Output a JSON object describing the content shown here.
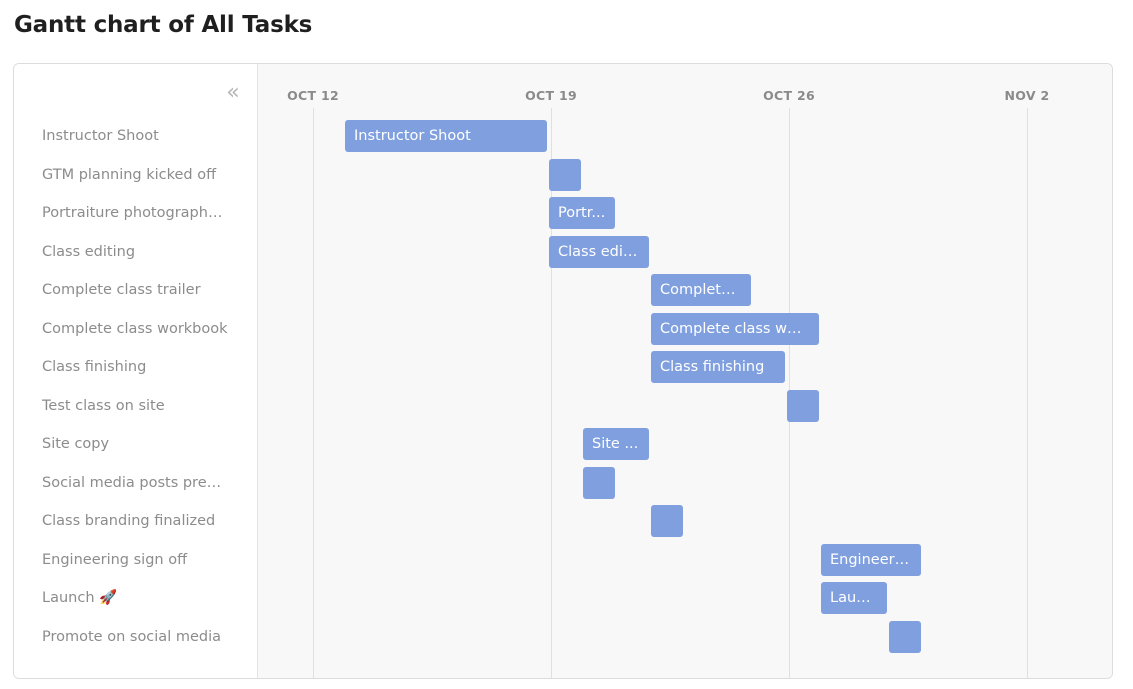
{
  "page": {
    "title": "Gantt chart of All Tasks",
    "collapse_icon": "«"
  },
  "colors": {
    "bar": "#7f9fdf",
    "bar_text": "#ffffff",
    "task_label": "#8c8c8c",
    "date_label": "#8a8a8a",
    "timeline_bg": "#f8f8f8"
  },
  "chart_data": {
    "type": "gantt",
    "title": "Gantt chart of All Tasks",
    "date_ticks": [
      {
        "label": "OCT 12",
        "date": "2020-10-12"
      },
      {
        "label": "OCT 19",
        "date": "2020-10-19"
      },
      {
        "label": "OCT 26",
        "date": "2020-10-26"
      },
      {
        "label": "NOV 2",
        "date": "2020-11-02"
      }
    ],
    "x_range": [
      "2020-10-10",
      "2020-11-04"
    ],
    "tasks": [
      {
        "name": "Instructor Shoot",
        "bar_label": "Instructor Shoot",
        "start": "2020-10-13",
        "end": "2020-10-18"
      },
      {
        "name": "GTM planning kicked off",
        "bar_label": "",
        "start": "2020-10-19",
        "end": "2020-10-19"
      },
      {
        "name": "Portraiture photography...",
        "bar_label": "Portr...",
        "start": "2020-10-19",
        "end": "2020-10-20"
      },
      {
        "name": "Class editing",
        "bar_label": "Class edit...",
        "start": "2020-10-19",
        "end": "2020-10-21"
      },
      {
        "name": "Complete class trailer",
        "bar_label": "Complete...",
        "start": "2020-10-22",
        "end": "2020-10-24"
      },
      {
        "name": "Complete class workbook",
        "bar_label": "Complete class wor...",
        "start": "2020-10-22",
        "end": "2020-10-26"
      },
      {
        "name": "Class finishing",
        "bar_label": "Class finishing",
        "start": "2020-10-22",
        "end": "2020-10-25"
      },
      {
        "name": "Test class on site",
        "bar_label": "",
        "start": "2020-10-26",
        "end": "2020-10-26"
      },
      {
        "name": "Site copy",
        "bar_label": "Site ...",
        "start": "2020-10-20",
        "end": "2020-10-21"
      },
      {
        "name": "Social media posts prep...",
        "bar_label": "",
        "start": "2020-10-20",
        "end": "2020-10-20"
      },
      {
        "name": "Class branding finalized",
        "bar_label": "",
        "start": "2020-10-22",
        "end": "2020-10-22"
      },
      {
        "name": "Engineering sign off",
        "bar_label": "Engineeri...",
        "start": "2020-10-27",
        "end": "2020-10-29"
      },
      {
        "name": "Launch 🚀",
        "bar_label": "Laun...",
        "start": "2020-10-27",
        "end": "2020-10-28"
      },
      {
        "name": "Promote on social media",
        "bar_label": "",
        "start": "2020-10-29",
        "end": "2020-10-29"
      }
    ]
  }
}
